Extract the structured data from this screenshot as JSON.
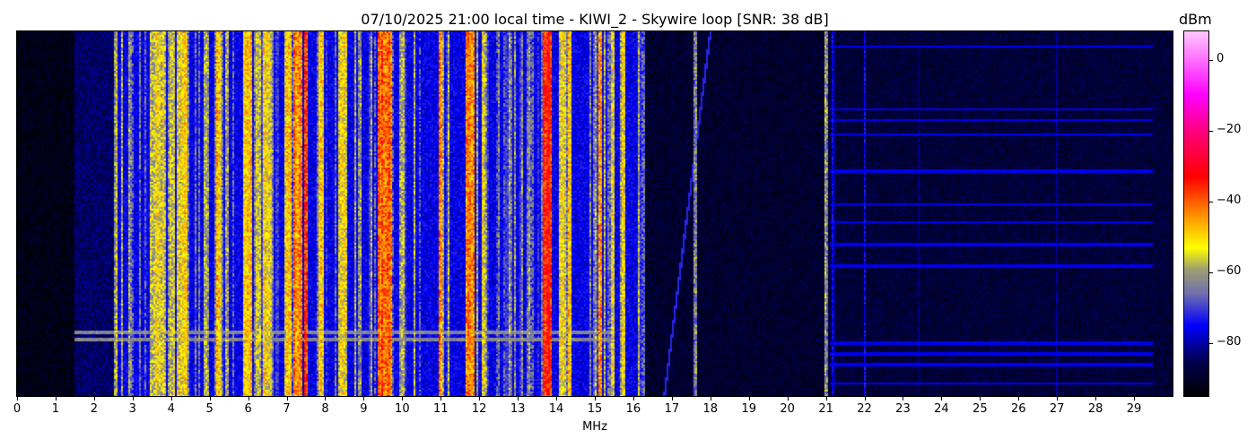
{
  "chart_data": {
    "type": "heatmap",
    "title": "07/10/2025 21:00 local time - KIWI_2 - Skywire loop [SNR: 38 dB]",
    "xlabel": "MHz",
    "ylabel": "",
    "xlim": [
      0,
      30
    ],
    "x_ticks": [
      "0",
      "1",
      "2",
      "3",
      "4",
      "5",
      "6",
      "7",
      "8",
      "9",
      "10",
      "11",
      "12",
      "13",
      "14",
      "15",
      "16",
      "17",
      "18",
      "19",
      "20",
      "21",
      "22",
      "23",
      "24",
      "25",
      "26",
      "27",
      "28",
      "29"
    ],
    "colorbar": {
      "label": "dBm",
      "range": [
        -95,
        8
      ],
      "ticks": [
        0,
        -20,
        -40,
        -60,
        -80
      ],
      "tick_labels": [
        "0",
        "−20",
        "−40",
        "−60",
        "−80"
      ],
      "colormap": [
        {
          "dbm": -95,
          "color": "#000000"
        },
        {
          "dbm": -85,
          "color": "#000050"
        },
        {
          "dbm": -75,
          "color": "#0000ff"
        },
        {
          "dbm": -66,
          "color": "#7070b0"
        },
        {
          "dbm": -59,
          "color": "#a0a070"
        },
        {
          "dbm": -53,
          "color": "#ffff00"
        },
        {
          "dbm": -45,
          "color": "#ffa000"
        },
        {
          "dbm": -33,
          "color": "#ff0000"
        },
        {
          "dbm": -20,
          "color": "#ff0080"
        },
        {
          "dbm": -10,
          "color": "#ff00ff"
        },
        {
          "dbm": 8,
          "color": "#ffc8ff"
        }
      ]
    },
    "noise_floor": [
      {
        "from_mhz": 0,
        "to_mhz": 1.5,
        "dbm": -92
      },
      {
        "from_mhz": 1.5,
        "to_mhz": 2.5,
        "dbm": -84
      },
      {
        "from_mhz": 2.5,
        "to_mhz": 16.3,
        "dbm": -76
      },
      {
        "from_mhz": 16.3,
        "to_mhz": 21,
        "dbm": -89
      },
      {
        "from_mhz": 21,
        "to_mhz": 30,
        "dbm": -88
      }
    ],
    "signals": [
      {
        "mhz": 2.55,
        "bw": 0.05,
        "dbm": -60
      },
      {
        "mhz": 3.65,
        "bw": 0.35,
        "dbm": -56
      },
      {
        "mhz": 4.05,
        "bw": 0.1,
        "dbm": -58
      },
      {
        "mhz": 4.3,
        "bw": 0.25,
        "dbm": -52
      },
      {
        "mhz": 4.9,
        "bw": 0.1,
        "dbm": -60
      },
      {
        "mhz": 5.25,
        "bw": 0.1,
        "dbm": -50
      },
      {
        "mhz": 6.0,
        "bw": 0.2,
        "dbm": -50
      },
      {
        "mhz": 6.25,
        "bw": 0.1,
        "dbm": -55
      },
      {
        "mhz": 6.5,
        "bw": 0.2,
        "dbm": -54
      },
      {
        "mhz": 7.05,
        "bw": 0.15,
        "dbm": -52
      },
      {
        "mhz": 7.3,
        "bw": 0.2,
        "dbm": -44
      },
      {
        "mhz": 7.5,
        "bw": 0.08,
        "dbm": -38
      },
      {
        "mhz": 7.9,
        "bw": 0.12,
        "dbm": -52
      },
      {
        "mhz": 8.45,
        "bw": 0.2,
        "dbm": -54
      },
      {
        "mhz": 9.55,
        "bw": 0.35,
        "dbm": -40
      },
      {
        "mhz": 10.0,
        "bw": 0.1,
        "dbm": -58
      },
      {
        "mhz": 11.0,
        "bw": 0.05,
        "dbm": -42
      },
      {
        "mhz": 11.75,
        "bw": 0.2,
        "dbm": -42
      },
      {
        "mhz": 12.1,
        "bw": 0.05,
        "dbm": -55
      },
      {
        "mhz": 13.75,
        "bw": 0.2,
        "dbm": -36
      },
      {
        "mhz": 14.15,
        "bw": 0.15,
        "dbm": -56
      },
      {
        "mhz": 14.35,
        "bw": 0.05,
        "dbm": -50
      },
      {
        "mhz": 15.15,
        "bw": 0.06,
        "dbm": -42
      },
      {
        "mhz": 15.45,
        "bw": 0.04,
        "dbm": -55
      },
      {
        "mhz": 15.75,
        "bw": 0.06,
        "dbm": -50
      },
      {
        "mhz": 16.25,
        "bw": 0.04,
        "dbm": -68
      },
      {
        "mhz": 17.6,
        "bw": 0.04,
        "dbm": -65
      },
      {
        "mhz": 21.0,
        "bw": 0.04,
        "dbm": -60
      },
      {
        "mhz": 21.2,
        "bw": 0.03,
        "dbm": -78
      },
      {
        "mhz": 22.0,
        "bw": 0.03,
        "dbm": -76
      },
      {
        "mhz": 23.4,
        "bw": 0.03,
        "dbm": -80
      },
      {
        "mhz": 27.0,
        "bw": 0.03,
        "dbm": -80
      }
    ]
  }
}
